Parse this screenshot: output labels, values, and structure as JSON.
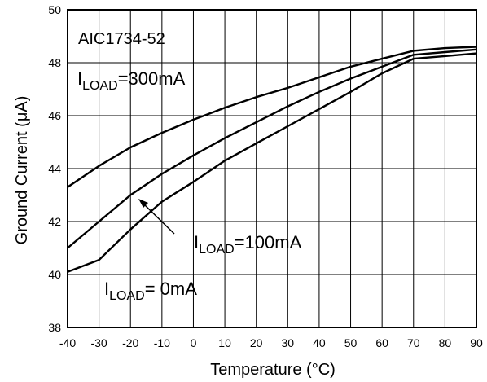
{
  "chart_data": {
    "type": "line",
    "title": "",
    "xlabel": "Temperature (°C)",
    "ylabel": "Ground Current (μA)",
    "xlim": [
      -40,
      90
    ],
    "ylim": [
      38,
      50
    ],
    "x_ticks": [
      -40,
      -30,
      -20,
      -10,
      0,
      10,
      20,
      30,
      40,
      50,
      60,
      70,
      80,
      90
    ],
    "y_ticks": [
      38,
      40,
      42,
      44,
      46,
      48,
      50
    ],
    "grid": true,
    "series": [
      {
        "name": "ILOAD=300mA",
        "x": [
          -40,
          -30,
          -20,
          -10,
          0,
          10,
          20,
          30,
          40,
          50,
          60,
          70,
          80,
          90
        ],
        "y": [
          43.3,
          44.1,
          44.8,
          45.35,
          45.85,
          46.3,
          46.7,
          47.05,
          47.45,
          47.85,
          48.15,
          48.45,
          48.55,
          48.6
        ]
      },
      {
        "name": "ILOAD=100mA",
        "x": [
          -40,
          -30,
          -20,
          -10,
          0,
          10,
          20,
          30,
          40,
          50,
          60,
          70,
          80,
          90
        ],
        "y": [
          41.0,
          42.0,
          43.0,
          43.8,
          44.5,
          45.15,
          45.75,
          46.35,
          46.9,
          47.4,
          47.85,
          48.3,
          48.4,
          48.5
        ]
      },
      {
        "name": "ILOAD= 0mA",
        "x": [
          -40,
          -30,
          -20,
          -10,
          0,
          10,
          20,
          30,
          40,
          50,
          60,
          70,
          80,
          90
        ],
        "y": [
          40.1,
          40.55,
          41.7,
          42.75,
          43.5,
          44.3,
          44.95,
          45.6,
          46.25,
          46.9,
          47.6,
          48.15,
          48.25,
          48.35
        ]
      }
    ],
    "annotations": {
      "device": "AIC1734-52",
      "label_300": {
        "main": "I",
        "sub": "LOAD",
        "rest": "=300mA"
      },
      "label_100": {
        "main": "I",
        "sub": "LOAD",
        "rest": "=100mA"
      },
      "label_0": {
        "main": "I",
        "sub": "LOAD",
        "rest": "= 0mA"
      }
    },
    "colors": {
      "line": "#000000",
      "grid": "#000000",
      "background": "#ffffff"
    }
  }
}
